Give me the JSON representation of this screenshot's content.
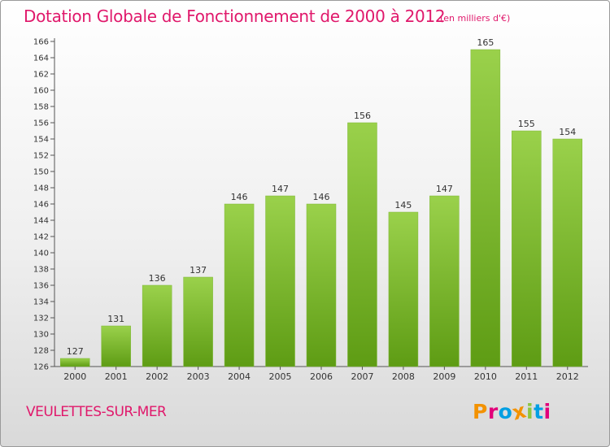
{
  "title": "Dotation Globale de Fonctionnement de 2000 à 2012",
  "unit_note": "(en milliers d'€)",
  "location": "VEULETTES-SUR-MER",
  "brand": {
    "name": "Proxiti",
    "colors": [
      "#f39200",
      "#e2007a",
      "#009fe3",
      "#f39200",
      "#8dc63f",
      "#009fe3",
      "#e2007a"
    ]
  },
  "colors": {
    "title": "#e0186b",
    "bar_light": "#9ad14b",
    "bar_dark": "#5e9c14"
  },
  "chart_data": {
    "type": "bar",
    "title": "Dotation Globale de Fonctionnement de 2000 à 2012",
    "categories": [
      "2000",
      "2001",
      "2002",
      "2003",
      "2004",
      "2005",
      "2006",
      "2007",
      "2008",
      "2009",
      "2010",
      "2011",
      "2012"
    ],
    "values": [
      127,
      131,
      136,
      137,
      146,
      147,
      146,
      156,
      145,
      147,
      165,
      155,
      154
    ],
    "ylim": [
      126,
      166
    ],
    "ytick_step": 2,
    "grid": false,
    "xlabel": "",
    "ylabel": ""
  }
}
